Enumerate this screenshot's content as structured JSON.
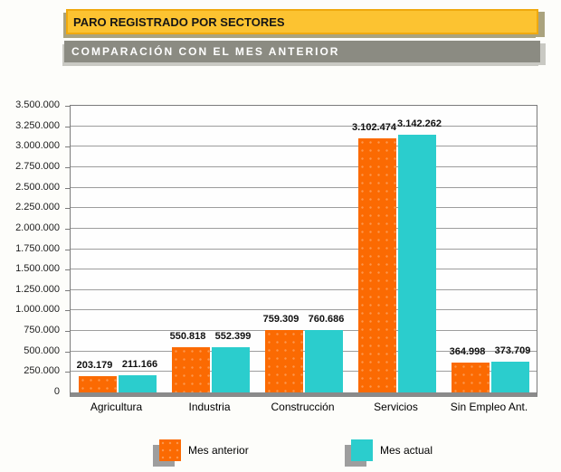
{
  "header": {
    "title": "PARO REGISTRADO POR SECTORES",
    "subtitle": "COMPARACIÓN CON EL MES ANTERIOR"
  },
  "chart_data": {
    "type": "bar",
    "title": "PARO REGISTRADO POR SECTORES",
    "subtitle": "COMPARACIÓN CON EL MES ANTERIOR",
    "categories": [
      "Agricultura",
      "Industria",
      "Construcción",
      "Servicios",
      "Sin Empleo Ant."
    ],
    "series": [
      {
        "name": "Mes anterior",
        "color": "#fb6a02",
        "values": [
          203179,
          550818,
          759309,
          3102474,
          364998
        ],
        "value_labels": [
          "203.179",
          "550.818",
          "759.309",
          "3.102.474",
          "364.998"
        ]
      },
      {
        "name": "Mes actual",
        "color": "#2bcdcd",
        "values": [
          211166,
          552399,
          760686,
          3142262,
          373709
        ],
        "value_labels": [
          "211.166",
          "552.399",
          "760.686",
          "3.142.262",
          "373.709"
        ]
      }
    ],
    "ylim": [
      0,
      3500000
    ],
    "yticks": [
      {
        "value": 0,
        "label": "0"
      },
      {
        "value": 250000,
        "label": "250.000"
      },
      {
        "value": 500000,
        "label": "500.000"
      },
      {
        "value": 750000,
        "label": "750.000"
      },
      {
        "value": 1000000,
        "label": "1.000.000"
      },
      {
        "value": 1250000,
        "label": "1.250.000"
      },
      {
        "value": 1500000,
        "label": "1.500.000"
      },
      {
        "value": 1750000,
        "label": "1.750.000"
      },
      {
        "value": 2000000,
        "label": "2.000.000"
      },
      {
        "value": 2250000,
        "label": "2.250.000"
      },
      {
        "value": 2500000,
        "label": "2.500.000"
      },
      {
        "value": 2750000,
        "label": "2.750.000"
      },
      {
        "value": 3000000,
        "label": "3.000.000"
      },
      {
        "value": 3250000,
        "label": "3.250.000"
      },
      {
        "value": 3500000,
        "label": "3.500.000"
      }
    ],
    "grid": true,
    "legend_position": "bottom",
    "legend": [
      "Mes anterior",
      "Mes actual"
    ]
  },
  "colors": {
    "title_banner_bg": "#fcc331",
    "title_banner_border": "#f0a90e",
    "title_banner_shadow": "#aaa37e",
    "subtitle_banner_bg": "#8b8b82",
    "subtitle_banner_shadow": "#c9c9c3",
    "series_mes_anterior": "#fb6a02",
    "series_mes_actual": "#2bcdcd",
    "grid_line": "#9d9d9d",
    "plot_border": "#7b7b7b",
    "axis_baseline": "#8a8a8a",
    "legend_swatch_shadow": "#9e9e9e"
  }
}
